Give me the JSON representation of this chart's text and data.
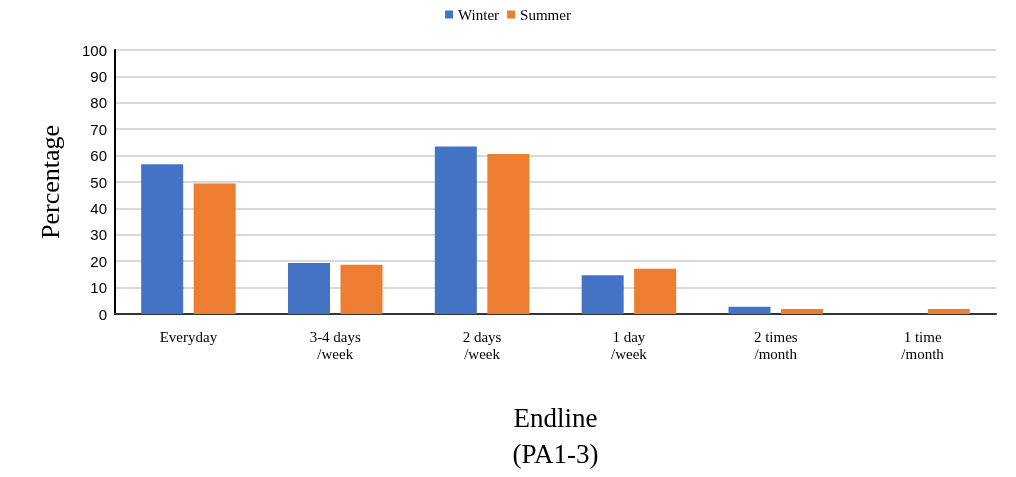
{
  "chart_data": {
    "type": "bar",
    "xlabel": "Endline\n(PA1-3)",
    "ylabel": "Percentage",
    "categories": [
      "Everyday",
      "3-4 days\n/week",
      "2 days\n/week",
      "1 day\n/week",
      "2 times\n/month",
      "1 time\n/month"
    ],
    "series": [
      {
        "name": "Winter",
        "color": "#4472c4",
        "values": [
          56.7,
          19.3,
          63.4,
          14.7,
          2.7,
          0
        ]
      },
      {
        "name": "Summer",
        "color": "#ed7d31",
        "values": [
          49.4,
          18.7,
          60.6,
          17.1,
          1.9,
          1.9
        ]
      }
    ],
    "ylim": [
      0,
      100
    ],
    "yticks": [
      0,
      10,
      20,
      30,
      40,
      50,
      60,
      70,
      80,
      90,
      100
    ],
    "grid": "y",
    "legend": "top"
  }
}
